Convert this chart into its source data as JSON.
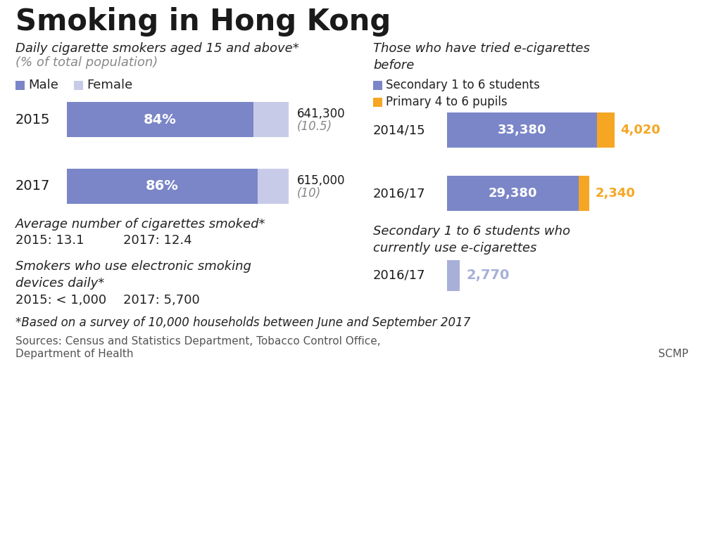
{
  "title": "Smoking in Hong Kong",
  "title_color": "#1a1a1a",
  "background_color": "#ffffff",
  "left_subtitle1": "Daily cigarette smokers aged 15 and above*",
  "left_subtitle2": "(% of total population)",
  "male_color": "#7b86c8",
  "female_color": "#c8cbe8",
  "male_label": "Male",
  "female_label": "Female",
  "smoker_bars": [
    {
      "year": "2015",
      "male_pct": 84,
      "female_pct": 16,
      "total": "641,300",
      "pct_pop": "(10.5)"
    },
    {
      "year": "2017",
      "male_pct": 86,
      "female_pct": 14,
      "total": "615,000",
      "pct_pop": "(10)"
    }
  ],
  "avg_cig_label": "Average number of cigarettes smoked*",
  "avg_cig_2015": "2015: 13.1",
  "avg_cig_2017": "2017: 12.4",
  "elec_label": "Smokers who use electronic smoking\ndevices daily*",
  "elec_2015": "2015: < 1,000",
  "elec_2017": "2017: 5,700",
  "right_title": "Those who have tried e-cigarettes\nbefore",
  "secondary_color": "#7b86c8",
  "primary_color": "#f5a623",
  "secondary_label": "Secondary 1 to 6 students",
  "primary_label": "Primary 4 to 6 pupils",
  "ecig_bars": [
    {
      "year": "2014/15",
      "secondary": 33380,
      "primary": 4020
    },
    {
      "year": "2016/17",
      "secondary": 29380,
      "primary": 2340
    }
  ],
  "ecig_max": 40000,
  "current_title": "Secondary 1 to 6 students who\ncurrently use e-cigarettes",
  "current_bar": {
    "year": "2016/17",
    "value": 2770
  },
  "current_color": "#a8b0d8",
  "footnote": "*Based on a survey of 10,000 households between June and September 2017",
  "sources_line1": "Sources: Census and Statistics Department, Tobacco Control Office,",
  "sources_line2": "Department of Health",
  "scmp": "SCMP"
}
